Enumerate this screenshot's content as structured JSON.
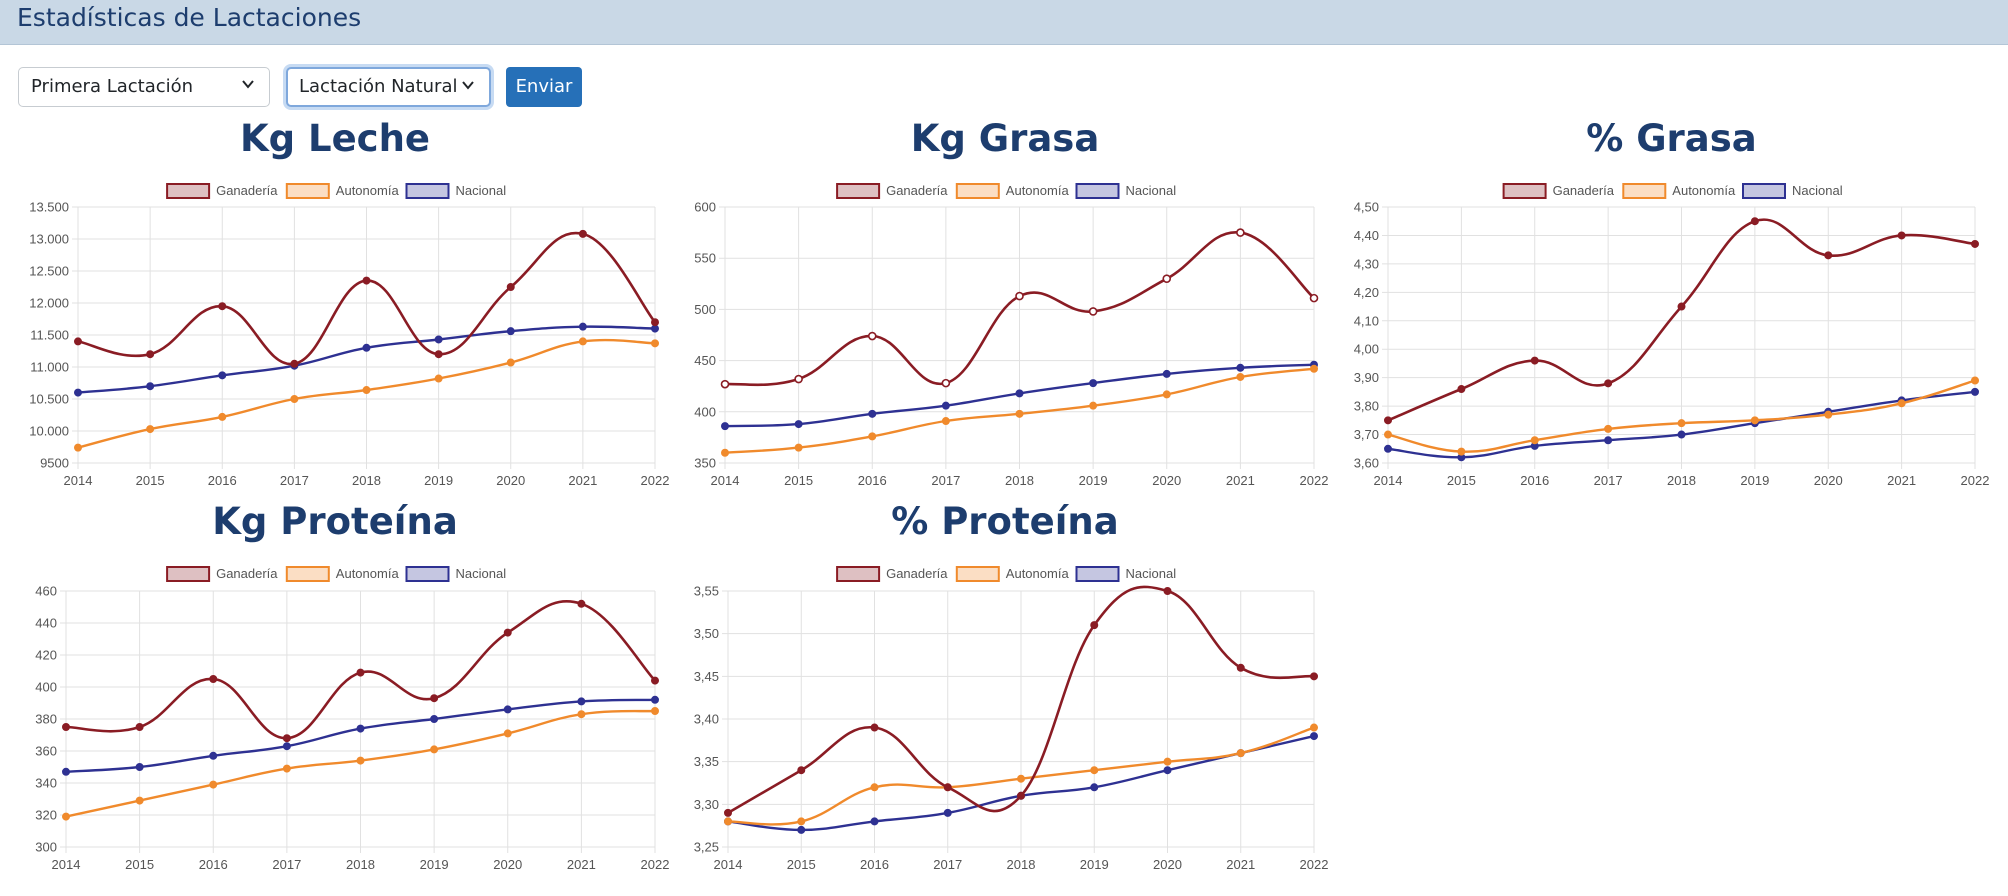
{
  "header": {
    "title": "Estadísticas de Lactaciones"
  },
  "controls": {
    "lactation_select": {
      "value": "Primera Lactación"
    },
    "type_select": {
      "value": "Lactación Natural"
    },
    "submit_label": "Enviar"
  },
  "colors": {
    "ganaderia": "#8a1c24",
    "autonomia": "#f08a2c",
    "nacional": "#2e3192"
  },
  "legend_labels": [
    "Ganadería",
    "Autonomía",
    "Nacional"
  ],
  "chart_data": [
    {
      "id": "kg-leche",
      "type": "line",
      "title": "Kg Leche",
      "x": [
        "2014",
        "2015",
        "2016",
        "2017",
        "2018",
        "2019",
        "2020",
        "2021",
        "2022"
      ],
      "ylim": [
        9500,
        13500
      ],
      "ystep": 500,
      "yticks": [
        "9500",
        "10.000",
        "10.500",
        "11.000",
        "11.500",
        "12.000",
        "12.500",
        "13.000",
        "13.500"
      ],
      "series": [
        {
          "name": "Ganadería",
          "values": [
            11400,
            11200,
            11950,
            11050,
            12350,
            11200,
            12250,
            13080,
            11700
          ],
          "hollow": false
        },
        {
          "name": "Autonomía",
          "values": [
            9740,
            10030,
            10220,
            10500,
            10640,
            10820,
            11070,
            11400,
            11370
          ]
        },
        {
          "name": "Nacional",
          "values": [
            10600,
            10700,
            10870,
            11020,
            11300,
            11430,
            11560,
            11630,
            11600
          ]
        }
      ]
    },
    {
      "id": "kg-grasa",
      "type": "line",
      "title": "Kg Grasa",
      "x": [
        "2014",
        "2015",
        "2016",
        "2017",
        "2018",
        "2019",
        "2020",
        "2021",
        "2022"
      ],
      "ylim": [
        350,
        600
      ],
      "ystep": 50,
      "yticks": [
        "350",
        "400",
        "450",
        "500",
        "550",
        "600"
      ],
      "series": [
        {
          "name": "Ganadería",
          "values": [
            427,
            432,
            474,
            428,
            513,
            498,
            530,
            575,
            511
          ],
          "hollow": true
        },
        {
          "name": "Autonomía",
          "values": [
            360,
            365,
            376,
            391,
            398,
            406,
            417,
            434,
            442
          ]
        },
        {
          "name": "Nacional",
          "values": [
            386,
            388,
            398,
            406,
            418,
            428,
            437,
            443,
            446
          ]
        }
      ]
    },
    {
      "id": "pct-grasa",
      "type": "line",
      "title": "% Grasa",
      "x": [
        "2014",
        "2015",
        "2016",
        "2017",
        "2018",
        "2019",
        "2020",
        "2021",
        "2022"
      ],
      "ylim": [
        3.6,
        4.5
      ],
      "ystep": 0.1,
      "yticks": [
        "3,60",
        "3,70",
        "3,80",
        "3,90",
        "4,00",
        "4,10",
        "4,20",
        "4,30",
        "4,40",
        "4,50"
      ],
      "series": [
        {
          "name": "Ganadería",
          "values": [
            3.75,
            3.86,
            3.96,
            3.88,
            4.15,
            4.45,
            4.33,
            4.4,
            4.37
          ],
          "hollow": false
        },
        {
          "name": "Autonomía",
          "values": [
            3.7,
            3.64,
            3.68,
            3.72,
            3.74,
            3.75,
            3.77,
            3.81,
            3.89
          ]
        },
        {
          "name": "Nacional",
          "values": [
            3.65,
            3.62,
            3.66,
            3.68,
            3.7,
            3.74,
            3.78,
            3.82,
            3.85
          ]
        }
      ]
    },
    {
      "id": "kg-proteina",
      "type": "line",
      "title": "Kg Proteína",
      "x": [
        "2014",
        "2015",
        "2016",
        "2017",
        "2018",
        "2019",
        "2020",
        "2021",
        "2022"
      ],
      "ylim": [
        300,
        460
      ],
      "ystep": 20,
      "yticks": [
        "300",
        "320",
        "340",
        "360",
        "380",
        "400",
        "420",
        "440",
        "460"
      ],
      "series": [
        {
          "name": "Ganadería",
          "values": [
            375,
            375,
            405,
            368,
            409,
            393,
            434,
            452,
            404
          ],
          "hollow": false
        },
        {
          "name": "Autonomía",
          "values": [
            319,
            329,
            339,
            349,
            354,
            361,
            371,
            383,
            385
          ]
        },
        {
          "name": "Nacional",
          "values": [
            347,
            350,
            357,
            363,
            374,
            380,
            386,
            391,
            392
          ]
        }
      ]
    },
    {
      "id": "pct-proteina",
      "type": "line",
      "title": "% Proteína",
      "x": [
        "2014",
        "2015",
        "2016",
        "2017",
        "2018",
        "2019",
        "2020",
        "2021",
        "2022"
      ],
      "ylim": [
        3.25,
        3.55
      ],
      "ystep": 0.05,
      "yticks": [
        "3,25",
        "3,30",
        "3,35",
        "3,40",
        "3,45",
        "3,50",
        "3,55"
      ],
      "series": [
        {
          "name": "Ganadería",
          "values": [
            3.29,
            3.34,
            3.39,
            3.32,
            3.31,
            3.51,
            3.55,
            3.46,
            3.45
          ],
          "hollow": false
        },
        {
          "name": "Autonomía",
          "values": [
            3.28,
            3.28,
            3.32,
            3.32,
            3.33,
            3.34,
            3.35,
            3.36,
            3.39
          ]
        },
        {
          "name": "Nacional",
          "values": [
            3.28,
            3.27,
            3.28,
            3.29,
            3.31,
            3.32,
            3.34,
            3.36,
            3.38
          ]
        }
      ]
    }
  ]
}
